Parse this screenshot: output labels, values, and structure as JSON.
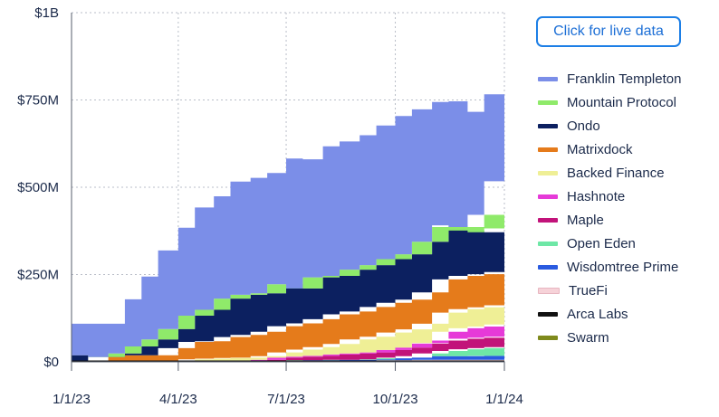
{
  "live_button_label": "Click for live data",
  "chart_data": {
    "type": "area",
    "stacked": true,
    "title": "",
    "xlabel": "",
    "ylabel": "",
    "x_ticks": [
      "1/1/23",
      "4/1/23",
      "7/1/23",
      "10/1/23",
      "1/1/24"
    ],
    "y_ticks": [
      "$0",
      "$250M",
      "$500M",
      "$750M",
      "$1B"
    ],
    "ylim": [
      0,
      1000
    ],
    "y_unit": "millions USD",
    "grid": "dotted",
    "legend_position": "right",
    "x": [
      "2023-01-01",
      "2023-01-15",
      "2023-02-01",
      "2023-02-15",
      "2023-03-01",
      "2023-03-15",
      "2023-04-01",
      "2023-04-15",
      "2023-05-01",
      "2023-05-15",
      "2023-06-01",
      "2023-06-15",
      "2023-07-01",
      "2023-07-15",
      "2023-08-01",
      "2023-08-15",
      "2023-09-01",
      "2023-09-15",
      "2023-10-01",
      "2023-10-15",
      "2023-11-01",
      "2023-11-15",
      "2023-12-01",
      "2023-12-15",
      "2024-01-01"
    ],
    "series": [
      {
        "name": "Swarm",
        "color": "#7f8a1c",
        "values": [
          1,
          1,
          1,
          1,
          1,
          1,
          1,
          1,
          1,
          1,
          1,
          1,
          1,
          1,
          1,
          1,
          1,
          1,
          1,
          1,
          1,
          1,
          1,
          1,
          1
        ]
      },
      {
        "name": "Arca Labs",
        "color": "#111111",
        "values": [
          3,
          3,
          3,
          3,
          3,
          3,
          3,
          3,
          3,
          3,
          3,
          3,
          3,
          3,
          3,
          3,
          3,
          3,
          3,
          3,
          3,
          3,
          3,
          3,
          3
        ]
      },
      {
        "name": "TrueFi",
        "color": "#f6d2d8",
        "values": [
          0,
          0,
          0,
          0,
          0,
          0,
          0,
          0,
          0,
          0,
          0,
          0,
          0,
          0,
          0,
          0,
          0,
          0,
          1,
          1,
          2,
          2,
          2,
          2,
          2
        ]
      },
      {
        "name": "Wisdomtree Prime",
        "color": "#2a5be0",
        "values": [
          0,
          0,
          0,
          0,
          0,
          0,
          0,
          0,
          0,
          0,
          0,
          0,
          0,
          1,
          1,
          2,
          2,
          3,
          5,
          7,
          10,
          10,
          10,
          11,
          11
        ]
      },
      {
        "name": "Open Eden",
        "color": "#6ee7a6",
        "values": [
          0,
          0,
          0,
          0,
          0,
          0,
          0,
          0,
          0,
          0,
          0,
          0,
          0,
          0,
          0,
          0,
          0,
          0,
          2,
          4,
          8,
          15,
          20,
          22,
          25
        ]
      },
      {
        "name": "Maple",
        "color": "#c2137a",
        "values": [
          0,
          0,
          0,
          0,
          0,
          0,
          0,
          0,
          0,
          0,
          0,
          2,
          8,
          10,
          12,
          15,
          18,
          20,
          22,
          25,
          28,
          30,
          30,
          30,
          30
        ]
      },
      {
        "name": "Hashnote",
        "color": "#e63ad8",
        "values": [
          0,
          0,
          0,
          0,
          0,
          0,
          0,
          0,
          0,
          0,
          0,
          0,
          0,
          0,
          0,
          0,
          0,
          0,
          0,
          0,
          2,
          25,
          30,
          32,
          35
        ]
      },
      {
        "name": "Backed Finance",
        "color": "#efef96",
        "values": [
          0,
          0,
          0,
          0,
          0,
          0,
          0,
          3,
          5,
          7,
          8,
          10,
          15,
          20,
          25,
          30,
          40,
          45,
          50,
          52,
          55,
          55,
          55,
          55,
          55
        ]
      },
      {
        "name": "Matrixdock",
        "color": "#e57b1b",
        "values": [
          0,
          0,
          10,
          15,
          15,
          15,
          35,
          50,
          50,
          60,
          65,
          70,
          75,
          75,
          80,
          85,
          80,
          85,
          85,
          85,
          90,
          95,
          95,
          95,
          95
        ]
      },
      {
        "name": "Ondo",
        "color": "#0c2060",
        "values": [
          15,
          15,
          0,
          5,
          25,
          45,
          55,
          75,
          90,
          110,
          115,
          110,
          120,
          100,
          120,
          110,
          120,
          120,
          125,
          130,
          145,
          150,
          130,
          120,
          125
        ]
      },
      {
        "name": "Mountain Protocol",
        "color": "#8fea6a",
        "values": [
          0,
          0,
          0,
          0,
          0,
          0,
          0,
          0,
          0,
          0,
          0,
          0,
          0,
          0,
          0,
          0,
          0,
          0,
          0,
          0,
          0,
          5,
          10,
          50,
          135
        ]
      },
      {
        "name": "Franklin Templeton",
        "color": "#7b8ee8",
        "values": [
          90,
          90,
          95,
          155,
          200,
          255,
          290,
          310,
          325,
          335,
          335,
          345,
          360,
          370,
          375,
          385,
          385,
          400,
          410,
          415,
          400,
          355,
          330,
          345,
          288
        ]
      }
    ],
    "legend_order": [
      "Franklin Templeton",
      "Mountain Protocol",
      "Ondo",
      "Matrixdock",
      "Backed Finance",
      "Hashnote",
      "Maple",
      "Open Eden",
      "Wisdomtree Prime",
      "TrueFi",
      "Arca Labs",
      "Swarm"
    ]
  }
}
